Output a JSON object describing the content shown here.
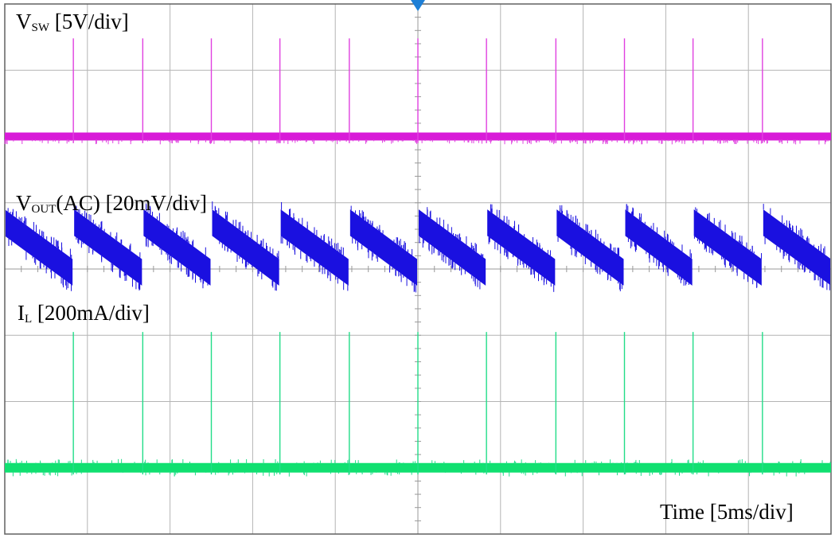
{
  "chart_data": {
    "type": "line",
    "grid": true,
    "divisions": {
      "x": 10,
      "y": 8
    },
    "x_scale": {
      "unit": "ms",
      "per_div": 5,
      "label": "Time [5ms/div]"
    },
    "trigger_marker": {
      "color": "#1e7fd6",
      "position": "top-center"
    },
    "switching_events_div": [
      0.83,
      1.67,
      2.5,
      3.33,
      4.17,
      5.0,
      5.83,
      6.67,
      7.5,
      8.33,
      9.17
    ],
    "series": [
      {
        "name": "Vsw",
        "label_main": "V",
        "label_sub": "SW",
        "label_scale": " [5V/div]",
        "color": "#e040e0",
        "band_color": "#d81bd8",
        "baseline_div": 6.0,
        "spike_top_div": 7.48,
        "spike_bottom_div": 5.9
      },
      {
        "name": "Vout(AC)",
        "label_main": "V",
        "label_sub": "OUT",
        "label_scale": "(AC) [20mV/div]",
        "color": "#1a10e0",
        "waveform": "sawtooth",
        "ramp_start_div": 4.7,
        "ramp_end_div": 3.95,
        "thickness_div": 0.4
      },
      {
        "name": "IL",
        "label_main": "I",
        "label_sub": "L",
        "label_scale": " [200mA/div]",
        "color": "#22dd88",
        "band_color": "#10e070",
        "baseline_div": 1.0,
        "spike_top_div": 3.05,
        "spike_bottom_div": 0.9
      }
    ]
  }
}
